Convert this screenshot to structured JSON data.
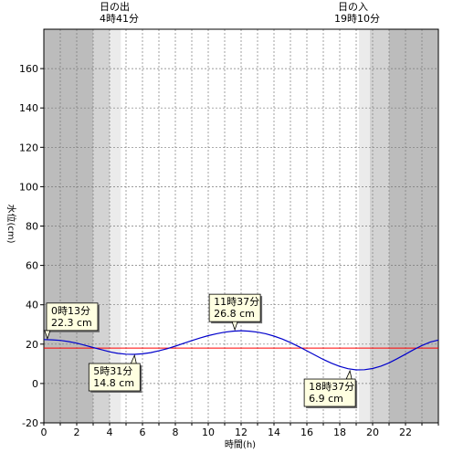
{
  "chart_data": {
    "type": "line",
    "xlabel": "時間(h)",
    "ylabel": "水位(cm)",
    "xlim": [
      0,
      24
    ],
    "ylim": [
      -20,
      180
    ],
    "xticks": [
      0,
      2,
      4,
      6,
      8,
      10,
      12,
      14,
      16,
      18,
      20,
      22
    ],
    "yticks": [
      -20,
      0,
      20,
      40,
      60,
      80,
      100,
      120,
      140,
      160
    ],
    "grid": true,
    "sunrise": {
      "label": "日の出",
      "time_label": "4時41分",
      "hour": 4.683
    },
    "sunset": {
      "label": "日の入",
      "time_label": "19時10分",
      "hour": 19.167
    },
    "day_shading": [
      {
        "from": 0,
        "to": 3.0,
        "level": "night"
      },
      {
        "from": 3.0,
        "to": 4.0,
        "level": "twilight-dark"
      },
      {
        "from": 4.0,
        "to": 4.683,
        "level": "twilight-light"
      },
      {
        "from": 19.167,
        "to": 19.833,
        "level": "twilight-light"
      },
      {
        "from": 19.833,
        "to": 21.0,
        "level": "twilight-dark"
      },
      {
        "from": 21.0,
        "to": 24,
        "level": "night"
      }
    ],
    "reference_line": {
      "value": 18,
      "color": "#ff0000"
    },
    "series_color": "#0000cc",
    "extrema": [
      {
        "hour": 0.217,
        "value": 22.3,
        "time_label": "0時13分",
        "value_label": "22.3 cm",
        "kind": "high"
      },
      {
        "hour": 5.517,
        "value": 14.8,
        "time_label": "5時31分",
        "value_label": "14.8 cm",
        "kind": "low"
      },
      {
        "hour": 11.617,
        "value": 26.8,
        "time_label": "11時37分",
        "value_label": "26.8 cm",
        "kind": "high"
      },
      {
        "hour": 18.617,
        "value": 6.9,
        "time_label": "18時37分",
        "value_label": "6.9 cm",
        "kind": "low"
      }
    ],
    "series": [
      {
        "x": [
          0,
          0.5,
          1,
          1.5,
          2,
          2.5,
          3,
          3.5,
          4,
          4.5,
          5,
          5.5,
          6,
          6.5,
          7,
          7.5,
          8,
          8.5,
          9,
          9.5,
          10,
          10.5,
          11,
          11.5,
          12,
          12.5,
          13,
          13.5,
          14,
          14.5,
          15,
          15.5,
          16,
          16.5,
          17,
          17.5,
          18,
          18.5,
          19,
          19.5,
          20,
          20.5,
          21,
          21.5,
          22,
          22.5,
          23,
          23.5,
          24
        ],
        "values": [
          22.3,
          22.2,
          21.9,
          21.3,
          20.5,
          19.4,
          18.3,
          17.2,
          16.1,
          15.3,
          14.9,
          14.8,
          15.1,
          15.7,
          16.6,
          17.7,
          19.0,
          20.4,
          21.8,
          23.1,
          24.3,
          25.3,
          26.1,
          26.6,
          26.8,
          26.6,
          26.1,
          25.3,
          24.1,
          22.6,
          20.8,
          18.8,
          16.6,
          14.4,
          12.2,
          10.3,
          8.7,
          7.5,
          6.9,
          7.0,
          7.6,
          8.8,
          10.5,
          12.6,
          14.9,
          17.2,
          19.3,
          21.0,
          22.1
        ]
      }
    ]
  }
}
